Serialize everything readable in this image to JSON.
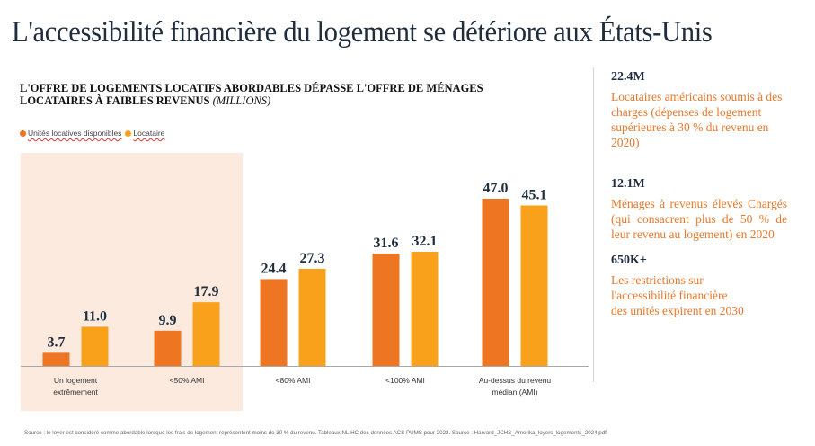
{
  "page": {
    "title": "L'accessibilité financière du logement se détériore aux États-Unis"
  },
  "colors": {
    "series_available": "#ee7623",
    "series_renter": "#f9a11b",
    "highlight_bg": "#fdeadf",
    "title_text": "#1f2d3d",
    "accent_text": "#e8782a"
  },
  "chart_data": {
    "type": "bar",
    "title": "L'OFFRE DE LOGEMENTS LOCATIFS ABORDABLES DÉPASSE L'OFFRE DE MÉNAGES LOCATAIRES À FAIBLES REVENUS",
    "title_line1": "L'OFFRE DE LOGEMENTS LOCATIFS ABORDABLES DÉPASSE L'OFFRE DE MÉNAGES",
    "title_line2": "LOCATAIRES À FAIBLES REVENUS",
    "unit": "(MILLIONS)",
    "xlabel": "",
    "ylabel": "",
    "ylim": [
      0,
      50
    ],
    "grid": false,
    "legend_position": "top-left",
    "categories": [
      "Un logement extrêmement",
      "<50% AMI",
      "<80% AMI",
      "<100% AMI",
      "Au-dessus du revenu médian (AMI)"
    ],
    "category_lines": [
      [
        "Un logement",
        "extrêmement"
      ],
      [
        "<50% AMI"
      ],
      [
        "<80% AMI"
      ],
      [
        "<100% AMI"
      ],
      [
        "Au-dessus du revenu",
        "médian (AMI)"
      ]
    ],
    "series": [
      {
        "name": "Unités locatives disponibles",
        "color": "#ee7623",
        "values": [
          3.7,
          9.9,
          24.4,
          31.6,
          47.0
        ],
        "labels": [
          "3.7",
          "9.9",
          "24.4",
          "31.6",
          "47.0"
        ]
      },
      {
        "name": "Locataire",
        "color": "#f9a11b",
        "values": [
          11.0,
          17.9,
          27.3,
          32.1,
          45.1
        ],
        "labels": [
          "11.0",
          "17.9",
          "27.3",
          "32.1",
          "45.1"
        ]
      }
    ],
    "highlighted_categories": [
      0,
      1
    ]
  },
  "stats": [
    {
      "value": "22.4M",
      "description": "Locataires américains soumis à des charges (dépenses de logement supérieures à 30 % du revenu en 2020)"
    },
    {
      "value": "12.1M",
      "description": "Ménages à revenus élevés Chargés (qui consacrent plus de 50 % de leur revenu au logement) en 2020"
    },
    {
      "value": "650K+",
      "description": "Les restrictions sur l'accessibilité financière des unités expirent en 2030"
    }
  ],
  "footnote": "Source : le loyer est considéré comme abordable lorsque les frais de logement représentent moins de 30 % du revenu. Tableaux NLIHC des données ACS PUMS pour 2022. Source : Harvard_JCHS_Amerika_loyers_logements_2024.pdf"
}
